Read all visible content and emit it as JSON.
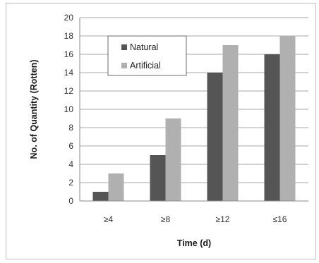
{
  "chart_data": {
    "type": "bar",
    "title": "",
    "xlabel": "Time (d)",
    "ylabel": "No. of Quantity (Rotten)",
    "categories": [
      "≥4",
      "≥8",
      "≥12",
      "≤16"
    ],
    "series": [
      {
        "name": "Natural",
        "values": [
          1,
          5,
          14,
          16
        ],
        "color": "#555555"
      },
      {
        "name": "Artificial",
        "values": [
          3,
          9,
          17,
          18
        ],
        "color": "#b0b0b0"
      }
    ],
    "ylim": [
      0,
      20
    ],
    "yticks": [
      0,
      2,
      4,
      6,
      8,
      10,
      12,
      14,
      16,
      18,
      20
    ],
    "grid": true,
    "legend": "top-left inside plot"
  }
}
